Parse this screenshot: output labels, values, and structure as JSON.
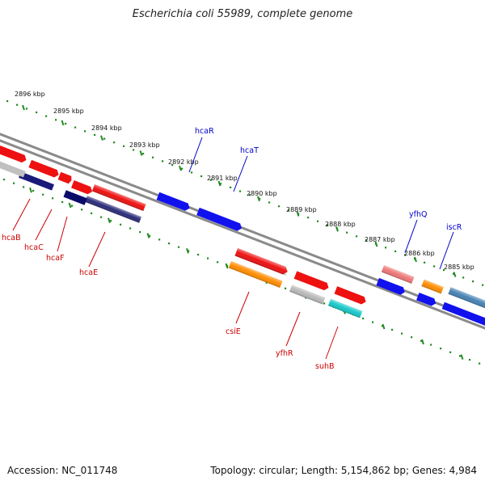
{
  "title": "Escherichia coli 55989, complete genome",
  "footer": {
    "accession": "Accession: NC_011748",
    "summary": "Topology: circular; Length: 5,154,862 bp; Genes: 4,984"
  },
  "colors": {
    "red_gene": "#ee1111",
    "blue_gene": "#1111ee",
    "orange_gene": "#ff8c00",
    "gray_gene": "#b0b0b0",
    "navy_gene": "#1a1a7a",
    "cyan_gene": "#17c8c8",
    "pink_gene": "#ee7777",
    "steel_gene": "#4682b4",
    "tick": "#228b22",
    "backbone": "#808080",
    "forward_label": "#0000cc",
    "reverse_label": "#cc0000"
  },
  "scale_ticks": [
    "2896 kbp",
    "2895 kbp",
    "2894 kbp",
    "2893 kbp",
    "2892 kbp",
    "2891 kbp",
    "2890 kbp",
    "2889 kbp",
    "2888 kbp",
    "2887 kbp",
    "2886 kbp",
    "2885 kbp"
  ],
  "forward_labels": [
    "hcaR",
    "hcaT",
    "yfhQ",
    "iscR"
  ],
  "reverse_labels": [
    "hcaB",
    "hcaC",
    "hcaF",
    "hcaE",
    "csiE",
    "yfhR",
    "suhB"
  ]
}
